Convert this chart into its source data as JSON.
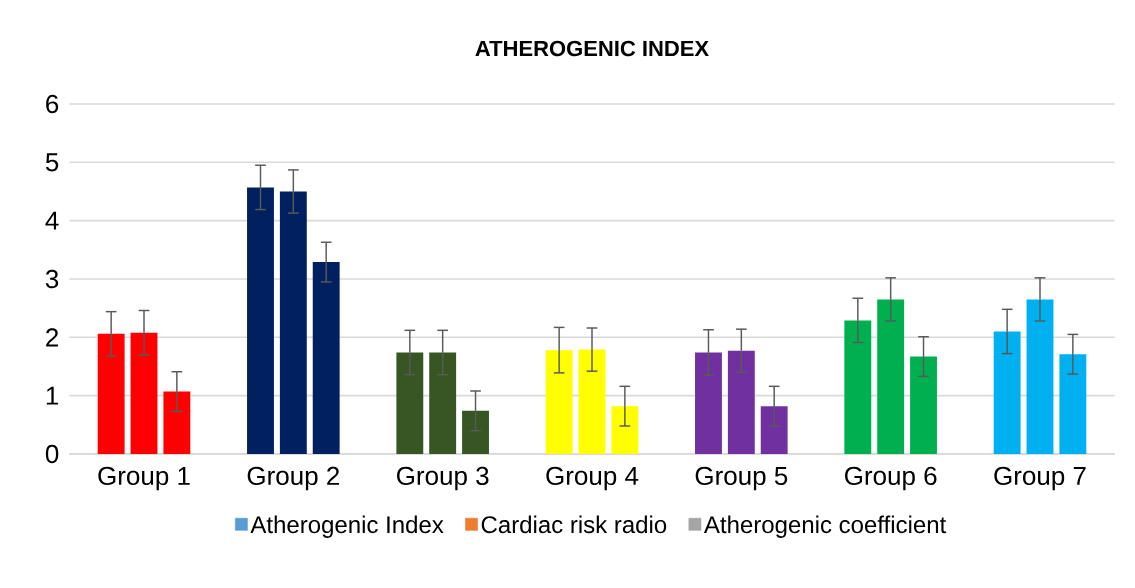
{
  "chart_data": {
    "type": "bar",
    "title": "ATHEROGENIC INDEX",
    "categories": [
      "Group 1",
      "Group 2",
      "Group 3",
      "Group 4",
      "Group 5",
      "Group 6",
      "Group 7"
    ],
    "series": [
      {
        "name": "Atherogenic Index",
        "color": "#5b9bd5",
        "colors": [
          "#ff0000",
          "#002060",
          "#375623",
          "#ffff00",
          "#7030a0",
          "#00b050",
          "#00b0f0"
        ],
        "values": [
          2.06,
          4.57,
          1.74,
          1.78,
          1.74,
          2.29,
          2.1
        ],
        "errors": [
          0.38,
          0.38,
          0.38,
          0.39,
          0.39,
          0.38,
          0.38
        ]
      },
      {
        "name": "Cardiac risk radio",
        "color": "#ed7d31",
        "colors": [
          "#ff0000",
          "#002060",
          "#375623",
          "#ffff00",
          "#7030a0",
          "#00b050",
          "#00b0f0"
        ],
        "values": [
          2.08,
          4.5,
          1.74,
          1.79,
          1.77,
          2.65,
          2.65
        ],
        "errors": [
          0.38,
          0.37,
          0.38,
          0.37,
          0.37,
          0.37,
          0.37
        ]
      },
      {
        "name": "Atherogenic coefficient",
        "color": "#a5a5a5",
        "colors": [
          "#ff0000",
          "#002060",
          "#375623",
          "#ffff00",
          "#7030a0",
          "#00b050",
          "#00b0f0"
        ],
        "values": [
          1.07,
          3.29,
          0.74,
          0.82,
          0.82,
          1.67,
          1.71
        ],
        "errors": [
          0.34,
          0.34,
          0.34,
          0.34,
          0.34,
          0.34,
          0.34
        ]
      }
    ],
    "ylim": [
      0,
      6
    ],
    "yticks": [
      0,
      1,
      2,
      3,
      4,
      5,
      6
    ],
    "grid": "y",
    "legend": "bottom"
  }
}
